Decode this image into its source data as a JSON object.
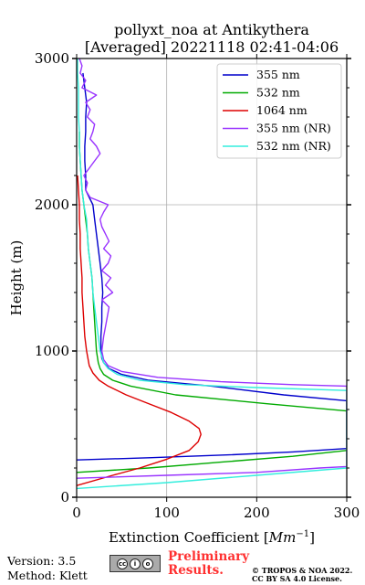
{
  "chart_data": {
    "type": "line",
    "title_line1": "pollyxt_noa at Antikythera",
    "title_line2": "[Averaged] 20221118 02:41-04:06",
    "xlabel": "Extinction Coefficient [",
    "xlabel_unit": "Mm",
    "xlabel_sup": "−1",
    "xlabel_end": "]",
    "ylabel": "Height (m)",
    "xlim": [
      0,
      300
    ],
    "ylim": [
      0,
      3000
    ],
    "xticks": [
      0,
      100,
      200,
      300
    ],
    "yticks": [
      0,
      1000,
      2000,
      3000
    ],
    "grid": true,
    "legend_position": "top-right",
    "series": [
      {
        "name": "355 nm",
        "color": "#0000cc",
        "height": [
          255,
          270,
          290,
          310,
          333,
          400,
          520,
          600,
          660,
          700,
          760,
          800,
          840,
          880,
          920,
          950,
          1000,
          1100,
          1200,
          1300,
          1400,
          1500,
          1600,
          1700,
          1800,
          1900,
          2000,
          2050,
          2100,
          2200,
          2300,
          2400,
          2500,
          2600,
          2700,
          2800,
          2900
        ],
        "value": [
          0,
          80,
          170,
          240,
          300,
          300,
          300,
          300,
          300,
          230,
          150,
          80,
          50,
          36,
          30,
          28,
          27,
          27,
          28,
          28,
          29,
          28,
          26,
          24,
          22,
          20,
          18,
          14,
          10,
          10,
          9,
          9,
          10,
          10,
          11,
          9,
          7
        ]
      },
      {
        "name": "532 nm",
        "color": "#00aa00",
        "height": [
          170,
          200,
          240,
          280,
          320,
          333,
          450,
          520,
          590,
          640,
          700,
          760,
          800,
          840,
          880,
          920,
          1000,
          1100,
          1200,
          1300,
          1400,
          1500,
          1600,
          1700,
          1800,
          1900,
          2000,
          2100,
          2200,
          2300,
          2400,
          2500
        ],
        "value": [
          0,
          80,
          160,
          240,
          300,
          300,
          300,
          300,
          300,
          210,
          110,
          60,
          40,
          30,
          26,
          24,
          22,
          21,
          20,
          19,
          18,
          17,
          15,
          13,
          12,
          10,
          8,
          6,
          5,
          4,
          3,
          3
        ]
      },
      {
        "name": "1064 nm",
        "color": "#dd0000",
        "height": [
          80,
          150,
          200,
          260,
          320,
          380,
          430,
          470,
          520,
          580,
          640,
          700,
          760,
          800,
          850,
          900,
          1000,
          1100,
          1200,
          1300,
          1400,
          1500,
          1600,
          1700,
          1800,
          1900,
          2000,
          2100,
          2200
        ],
        "value": [
          0,
          40,
          70,
          100,
          125,
          135,
          138,
          136,
          125,
          105,
          80,
          55,
          35,
          25,
          18,
          14,
          11,
          9,
          8,
          7,
          6,
          6,
          5,
          4,
          4,
          3,
          3,
          2,
          1
        ]
      },
      {
        "name": "355 nm (NR)",
        "color": "#9933ff",
        "height": [
          130,
          150,
          170,
          200,
          210,
          400,
          600,
          760,
          770,
          790,
          820,
          860,
          900,
          940,
          1000,
          1100,
          1200,
          1300,
          1350,
          1400,
          1450,
          1500,
          1550,
          1600,
          1650,
          1700,
          1750,
          1800,
          1850,
          1900,
          1950,
          2000,
          2050,
          2100,
          2150,
          2200,
          2250,
          2300,
          2350,
          2400,
          2450,
          2500,
          2550,
          2600,
          2650,
          2700,
          2750,
          2800,
          2850,
          2900,
          2950,
          3000
        ],
        "value": [
          0,
          100,
          200,
          270,
          300,
          300,
          300,
          300,
          240,
          160,
          90,
          50,
          35,
          30,
          28,
          30,
          33,
          36,
          28,
          40,
          32,
          38,
          28,
          35,
          38,
          30,
          36,
          32,
          28,
          26,
          30,
          35,
          15,
          10,
          12,
          8,
          14,
          20,
          26,
          22,
          15,
          18,
          20,
          12,
          15,
          10,
          22,
          6,
          10,
          4,
          6,
          3
        ]
      },
      {
        "name": "532 nm (NR)",
        "color": "#33eedd",
        "height": [
          60,
          100,
          150,
          200,
          210,
          400,
          600,
          730,
          750,
          770,
          800,
          840,
          880,
          920,
          1000,
          1100,
          1200,
          1300,
          1400,
          1500,
          1600,
          1700,
          1800,
          1900,
          2000,
          2100,
          2200,
          2300,
          2400,
          2500,
          2600,
          2700,
          2800,
          2900,
          3000
        ],
        "value": [
          0,
          100,
          200,
          300,
          300,
          300,
          300,
          300,
          200,
          120,
          70,
          45,
          35,
          30,
          26,
          24,
          22,
          20,
          18,
          17,
          15,
          13,
          12,
          11,
          8,
          6,
          5,
          4,
          3,
          3,
          2,
          2,
          2,
          1,
          1
        ]
      }
    ]
  },
  "footer": {
    "version": "Version: 3.5",
    "method": "Method: Klett",
    "preliminary": "Preliminary Results.",
    "copyright": "© TROPOS & NOA 2022. CC BY SA 4.0 License.",
    "badge": [
      "cc",
      "i",
      "o"
    ]
  }
}
